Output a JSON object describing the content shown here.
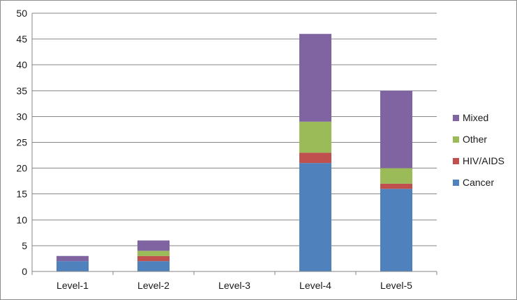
{
  "chart_data": {
    "type": "bar",
    "stacked": true,
    "categories": [
      "Level-1",
      "Level-2",
      "Level-3",
      "Level-4",
      "Level-5"
    ],
    "series": [
      {
        "name": "Cancer",
        "color": "#4f81bd",
        "values": [
          2,
          2,
          0,
          21,
          16
        ]
      },
      {
        "name": "HIV/AIDS",
        "color": "#c0504d",
        "values": [
          0,
          1,
          0,
          2,
          1
        ]
      },
      {
        "name": "Other",
        "color": "#9bbb59",
        "values": [
          0,
          1,
          0,
          6,
          3
        ]
      },
      {
        "name": "Mixed",
        "color": "#8064a2",
        "values": [
          1,
          2,
          0,
          17,
          15
        ]
      }
    ],
    "ylim": [
      0,
      50
    ],
    "yticks": [
      0,
      5,
      10,
      15,
      20,
      25,
      30,
      35,
      40,
      45,
      50
    ],
    "grid": true,
    "legend_position": "right"
  }
}
